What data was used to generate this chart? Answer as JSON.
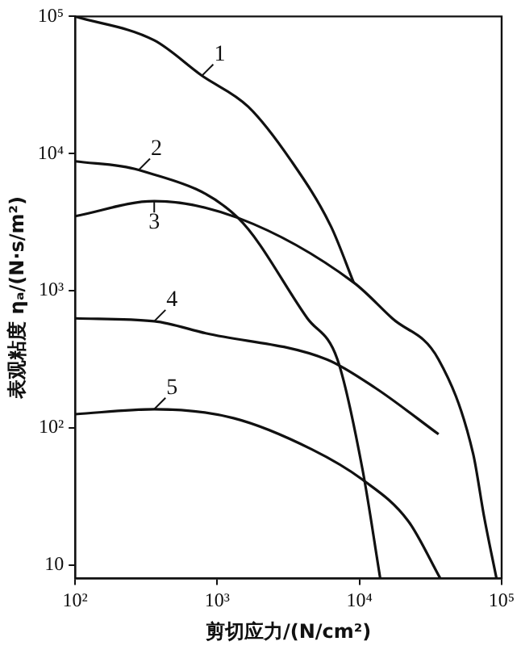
{
  "chart_data": {
    "type": "line",
    "xlabel": "剪切应力/(N/cm²)",
    "ylabel": "表观粘度 ηₐ/(N·s/m²)",
    "log": "xy",
    "grid": false,
    "legend": false,
    "marker": "none",
    "line_style": "solid",
    "xlim": [
      100,
      100000
    ],
    "ylim": [
      8,
      100000
    ],
    "xticks": [
      {
        "value": 100,
        "label": "10²"
      },
      {
        "value": 1000,
        "label": "10³"
      },
      {
        "value": 10000,
        "label": "10⁴"
      },
      {
        "value": 100000,
        "label": "10⁵"
      }
    ],
    "yticks": [
      10,
      {
        "value": 100,
        "label": "10²"
      },
      {
        "value": 1000,
        "label": "10³"
      },
      {
        "value": 10000,
        "label": "10⁴"
      },
      {
        "value": 100000,
        "label": "10⁵"
      }
    ],
    "series": [
      {
        "color": "#111111",
        "x": [
          100,
          360,
          780,
          1650,
          3300,
          6300,
          9100
        ],
        "values": [
          100000,
          67000,
          37000,
          22000,
          8900,
          2950,
          1150
        ]
      },
      {
        "color": "#111111",
        "x": [
          100,
          280,
          1400,
          4300,
          7000,
          10500,
          14000
        ],
        "values": [
          8800,
          7600,
          3400,
          630,
          316,
          50,
          8
        ]
      },
      {
        "color": "#111111",
        "x": [
          100,
          360,
          1400,
          9100,
          17000,
          36000,
          63000,
          75000,
          92000
        ],
        "values": [
          3500,
          4500,
          3400,
          1150,
          630,
          316,
          65,
          23,
          8
        ]
      },
      {
        "color": "#111111",
        "x": [
          100,
          360,
          830,
          5900,
          13000,
          36000
        ],
        "values": [
          630,
          600,
          490,
          316,
          195,
          90
        ]
      },
      {
        "color": "#111111",
        "x": [
          100,
          360,
          1300,
          4600,
          10500,
          22000,
          37000
        ],
        "values": [
          126,
          137,
          118,
          70,
          42,
          21,
          8
        ]
      }
    ],
    "annotations": [
      {
        "text": "1",
        "x": 780,
        "y": 37000
      },
      {
        "text": "2",
        "x": 280,
        "y": 7600
      },
      {
        "text": "3",
        "x": 360,
        "y": 4500
      },
      {
        "text": "4",
        "x": 360,
        "y": 600
      },
      {
        "text": "5",
        "x": 360,
        "y": 137
      }
    ]
  }
}
